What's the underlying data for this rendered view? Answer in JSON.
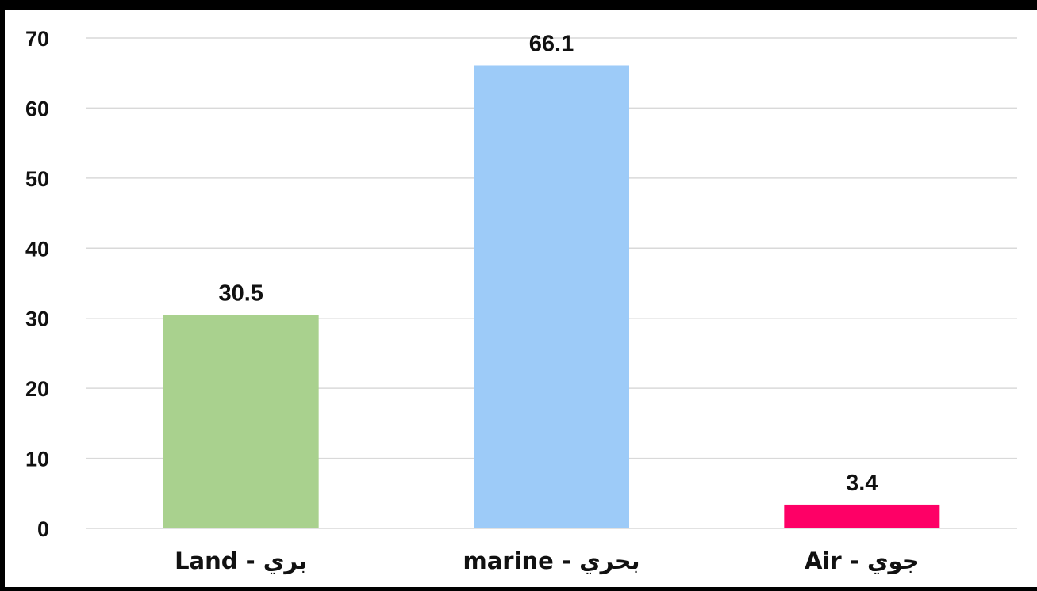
{
  "chart_data": {
    "type": "bar",
    "categories": [
      "Land - بري",
      "marine - بحري",
      "Air - جوي"
    ],
    "values": [
      30.5,
      66.1,
      3.4
    ],
    "data_labels": [
      "30.5",
      "66.1",
      "3.4"
    ],
    "y_ticks": [
      "0",
      "10",
      "20",
      "30",
      "40",
      "50",
      "60",
      "70"
    ],
    "ylim": [
      0,
      70
    ],
    "grid": true,
    "bar_colors": [
      "#a9d18e",
      "#9dcbf8",
      "#fe0066"
    ],
    "grid_color": "#d9d9d9",
    "title": "",
    "xlabel": "",
    "ylabel": ""
  }
}
